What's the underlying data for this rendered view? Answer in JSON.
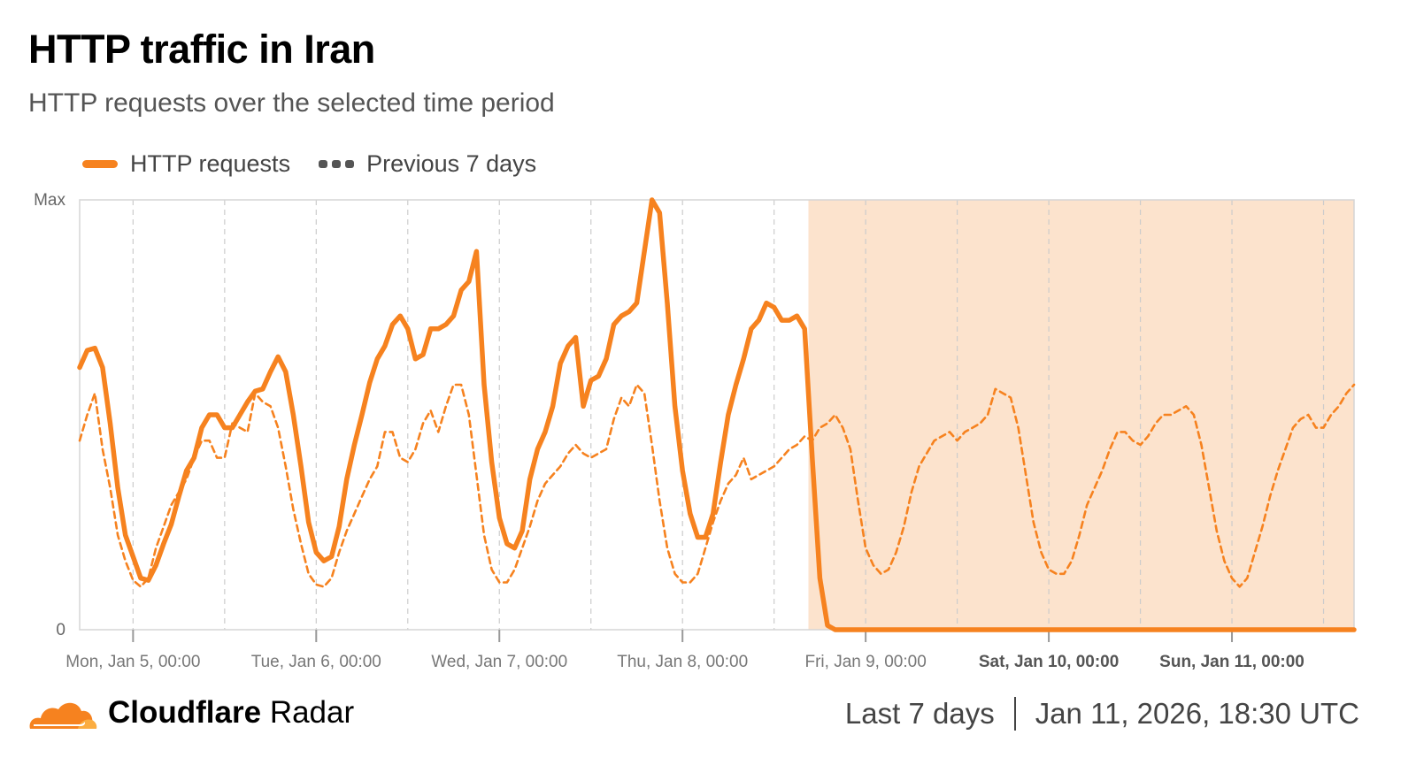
{
  "title": "HTTP traffic in Iran",
  "subtitle": "HTTP requests over the selected time period",
  "legend": {
    "current": "HTTP requests",
    "previous": "Previous 7 days"
  },
  "colors": {
    "current": "#f6821f",
    "previous": "#f6821f",
    "outage_shade": "#fce3cd",
    "grid": "#cccccc"
  },
  "footer": {
    "brand_bold": "Cloudflare",
    "brand_light": "Radar",
    "period": "Last 7 days",
    "timestamp": "Jan 11, 2026, 18:30 UTC"
  },
  "chart_data": {
    "type": "line",
    "title": "HTTP traffic in Iran",
    "subtitle": "HTTP requests over the selected time period",
    "y_tick_labels": [
      "0",
      "Max"
    ],
    "ylim": [
      0,
      1
    ],
    "x_tick_labels": [
      "Mon, Jan 5, 00:00",
      "Tue, Jan 6, 00:00",
      "Wed, Jan 7, 00:00",
      "Thu, Jan 8, 00:00",
      "Fri, Jan 9, 00:00",
      "Sat, Jan 10, 00:00",
      "Sun, Jan 11, 00:00"
    ],
    "x_tick_hours": [
      0,
      24,
      48,
      72,
      96,
      120,
      144
    ],
    "bold_tick_labels": [
      "Sat, Jan 10, 00:00",
      "Sun, Jan 11, 00:00"
    ],
    "xlim_hours": [
      -7,
      160
    ],
    "grid": true,
    "legend_position": "top-left",
    "shaded_region_hours": [
      88.5,
      160
    ],
    "series": [
      {
        "name": "HTTP requests",
        "style": "solid",
        "points": [
          [
            -7,
            0.61
          ],
          [
            -6,
            0.65
          ],
          [
            -5,
            0.655
          ],
          [
            -4,
            0.61
          ],
          [
            -3,
            0.48
          ],
          [
            -2,
            0.33
          ],
          [
            -1,
            0.22
          ],
          [
            0,
            0.17
          ],
          [
            1,
            0.12
          ],
          [
            2,
            0.115
          ],
          [
            3,
            0.15
          ],
          [
            4,
            0.2
          ],
          [
            5,
            0.245
          ],
          [
            6,
            0.31
          ],
          [
            7,
            0.37
          ],
          [
            8,
            0.4
          ],
          [
            9,
            0.47
          ],
          [
            10,
            0.5
          ],
          [
            11,
            0.5
          ],
          [
            12,
            0.47
          ],
          [
            13,
            0.47
          ],
          [
            14,
            0.5
          ],
          [
            15,
            0.53
          ],
          [
            16,
            0.555
          ],
          [
            17,
            0.56
          ],
          [
            18,
            0.6
          ],
          [
            19,
            0.635
          ],
          [
            20,
            0.6
          ],
          [
            21,
            0.5
          ],
          [
            22,
            0.38
          ],
          [
            23,
            0.25
          ],
          [
            24,
            0.18
          ],
          [
            25,
            0.16
          ],
          [
            26,
            0.17
          ],
          [
            27,
            0.24
          ],
          [
            28,
            0.35
          ],
          [
            29,
            0.43
          ],
          [
            30,
            0.5
          ],
          [
            31,
            0.575
          ],
          [
            32,
            0.63
          ],
          [
            33,
            0.66
          ],
          [
            34,
            0.71
          ],
          [
            35,
            0.73
          ],
          [
            36,
            0.7
          ],
          [
            37,
            0.63
          ],
          [
            38,
            0.64
          ],
          [
            39,
            0.7
          ],
          [
            40,
            0.7
          ],
          [
            41,
            0.71
          ],
          [
            42,
            0.73
          ],
          [
            43,
            0.79
          ],
          [
            44,
            0.81
          ],
          [
            45,
            0.88
          ],
          [
            46,
            0.57
          ],
          [
            47,
            0.39
          ],
          [
            48,
            0.26
          ],
          [
            49,
            0.2
          ],
          [
            50,
            0.19
          ],
          [
            51,
            0.23
          ],
          [
            52,
            0.35
          ],
          [
            53,
            0.42
          ],
          [
            54,
            0.46
          ],
          [
            55,
            0.52
          ],
          [
            56,
            0.62
          ],
          [
            57,
            0.66
          ],
          [
            58,
            0.68
          ],
          [
            59,
            0.52
          ],
          [
            60,
            0.58
          ],
          [
            61,
            0.59
          ],
          [
            62,
            0.63
          ],
          [
            63,
            0.71
          ],
          [
            64,
            0.73
          ],
          [
            65,
            0.74
          ],
          [
            66,
            0.76
          ],
          [
            67,
            0.88
          ],
          [
            68,
            1.0
          ],
          [
            69,
            0.97
          ],
          [
            70,
            0.76
          ],
          [
            71,
            0.52
          ],
          [
            72,
            0.37
          ],
          [
            73,
            0.27
          ],
          [
            74,
            0.215
          ],
          [
            75,
            0.215
          ],
          [
            76,
            0.27
          ],
          [
            77,
            0.39
          ],
          [
            78,
            0.5
          ],
          [
            79,
            0.57
          ],
          [
            80,
            0.63
          ],
          [
            81,
            0.7
          ],
          [
            82,
            0.72
          ],
          [
            83,
            0.76
          ],
          [
            84,
            0.75
          ],
          [
            85,
            0.72
          ],
          [
            86,
            0.72
          ],
          [
            87,
            0.73
          ],
          [
            88,
            0.7
          ],
          [
            89,
            0.4
          ],
          [
            90,
            0.12
          ],
          [
            91,
            0.01
          ],
          [
            92,
            0.0
          ],
          [
            96,
            0.0
          ],
          [
            120,
            0.0
          ],
          [
            144,
            0.0
          ],
          [
            160,
            0.0
          ]
        ]
      },
      {
        "name": "Previous 7 days",
        "style": "dashed",
        "points": [
          [
            -7,
            0.44
          ],
          [
            -6,
            0.5
          ],
          [
            -5,
            0.55
          ],
          [
            -4,
            0.42
          ],
          [
            -3,
            0.33
          ],
          [
            -2,
            0.22
          ],
          [
            -1,
            0.16
          ],
          [
            0,
            0.115
          ],
          [
            1,
            0.1
          ],
          [
            2,
            0.12
          ],
          [
            3,
            0.19
          ],
          [
            4,
            0.24
          ],
          [
            5,
            0.29
          ],
          [
            6,
            0.32
          ],
          [
            7,
            0.35
          ],
          [
            8,
            0.4
          ],
          [
            9,
            0.44
          ],
          [
            10,
            0.44
          ],
          [
            11,
            0.4
          ],
          [
            12,
            0.4
          ],
          [
            13,
            0.48
          ],
          [
            14,
            0.47
          ],
          [
            15,
            0.46
          ],
          [
            16,
            0.55
          ],
          [
            17,
            0.53
          ],
          [
            18,
            0.52
          ],
          [
            19,
            0.47
          ],
          [
            20,
            0.38
          ],
          [
            21,
            0.28
          ],
          [
            22,
            0.2
          ],
          [
            23,
            0.13
          ],
          [
            24,
            0.105
          ],
          [
            25,
            0.1
          ],
          [
            26,
            0.12
          ],
          [
            27,
            0.18
          ],
          [
            28,
            0.23
          ],
          [
            29,
            0.27
          ],
          [
            30,
            0.31
          ],
          [
            31,
            0.35
          ],
          [
            32,
            0.38
          ],
          [
            33,
            0.46
          ],
          [
            34,
            0.46
          ],
          [
            35,
            0.4
          ],
          [
            36,
            0.39
          ],
          [
            37,
            0.42
          ],
          [
            38,
            0.48
          ],
          [
            39,
            0.51
          ],
          [
            40,
            0.46
          ],
          [
            41,
            0.52
          ],
          [
            42,
            0.57
          ],
          [
            43,
            0.57
          ],
          [
            44,
            0.5
          ],
          [
            45,
            0.36
          ],
          [
            46,
            0.22
          ],
          [
            47,
            0.14
          ],
          [
            48,
            0.11
          ],
          [
            49,
            0.11
          ],
          [
            50,
            0.14
          ],
          [
            51,
            0.19
          ],
          [
            52,
            0.24
          ],
          [
            53,
            0.3
          ],
          [
            54,
            0.34
          ],
          [
            55,
            0.36
          ],
          [
            56,
            0.38
          ],
          [
            57,
            0.41
          ],
          [
            58,
            0.43
          ],
          [
            59,
            0.41
          ],
          [
            60,
            0.4
          ],
          [
            61,
            0.41
          ],
          [
            62,
            0.42
          ],
          [
            63,
            0.49
          ],
          [
            64,
            0.54
          ],
          [
            65,
            0.52
          ],
          [
            66,
            0.57
          ],
          [
            67,
            0.55
          ],
          [
            68,
            0.43
          ],
          [
            69,
            0.3
          ],
          [
            70,
            0.19
          ],
          [
            71,
            0.13
          ],
          [
            72,
            0.11
          ],
          [
            73,
            0.11
          ],
          [
            74,
            0.13
          ],
          [
            75,
            0.19
          ],
          [
            76,
            0.25
          ],
          [
            77,
            0.3
          ],
          [
            78,
            0.34
          ],
          [
            79,
            0.36
          ],
          [
            80,
            0.4
          ],
          [
            81,
            0.35
          ],
          [
            82,
            0.36
          ],
          [
            83,
            0.37
          ],
          [
            84,
            0.38
          ],
          [
            85,
            0.4
          ],
          [
            86,
            0.42
          ],
          [
            87,
            0.43
          ],
          [
            88,
            0.45
          ],
          [
            89,
            0.44
          ],
          [
            90,
            0.47
          ],
          [
            91,
            0.48
          ],
          [
            92,
            0.5
          ],
          [
            93,
            0.47
          ],
          [
            94,
            0.42
          ],
          [
            95,
            0.3
          ],
          [
            96,
            0.19
          ],
          [
            97,
            0.15
          ],
          [
            98,
            0.13
          ],
          [
            99,
            0.14
          ],
          [
            100,
            0.18
          ],
          [
            101,
            0.24
          ],
          [
            102,
            0.32
          ],
          [
            103,
            0.38
          ],
          [
            104,
            0.41
          ],
          [
            105,
            0.44
          ],
          [
            106,
            0.45
          ],
          [
            107,
            0.46
          ],
          [
            108,
            0.44
          ],
          [
            109,
            0.46
          ],
          [
            110,
            0.47
          ],
          [
            111,
            0.48
          ],
          [
            112,
            0.5
          ],
          [
            113,
            0.56
          ],
          [
            114,
            0.55
          ],
          [
            115,
            0.54
          ],
          [
            116,
            0.47
          ],
          [
            117,
            0.36
          ],
          [
            118,
            0.25
          ],
          [
            119,
            0.18
          ],
          [
            120,
            0.14
          ],
          [
            121,
            0.13
          ],
          [
            122,
            0.13
          ],
          [
            123,
            0.16
          ],
          [
            124,
            0.22
          ],
          [
            125,
            0.29
          ],
          [
            126,
            0.33
          ],
          [
            127,
            0.37
          ],
          [
            128,
            0.42
          ],
          [
            129,
            0.46
          ],
          [
            130,
            0.46
          ],
          [
            131,
            0.44
          ],
          [
            132,
            0.43
          ],
          [
            133,
            0.45
          ],
          [
            134,
            0.48
          ],
          [
            135,
            0.5
          ],
          [
            136,
            0.5
          ],
          [
            137,
            0.51
          ],
          [
            138,
            0.52
          ],
          [
            139,
            0.5
          ],
          [
            140,
            0.43
          ],
          [
            141,
            0.33
          ],
          [
            142,
            0.23
          ],
          [
            143,
            0.16
          ],
          [
            144,
            0.12
          ],
          [
            145,
            0.1
          ],
          [
            146,
            0.12
          ],
          [
            147,
            0.18
          ],
          [
            148,
            0.24
          ],
          [
            149,
            0.31
          ],
          [
            150,
            0.37
          ],
          [
            151,
            0.42
          ],
          [
            152,
            0.47
          ],
          [
            153,
            0.49
          ],
          [
            154,
            0.5
          ],
          [
            155,
            0.47
          ],
          [
            156,
            0.47
          ],
          [
            157,
            0.5
          ],
          [
            158,
            0.52
          ],
          [
            159,
            0.55
          ],
          [
            160,
            0.57
          ]
        ]
      }
    ]
  }
}
